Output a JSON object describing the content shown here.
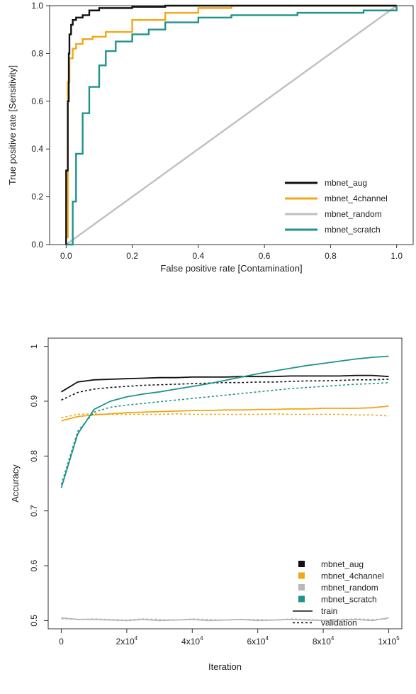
{
  "chart_data": [
    {
      "type": "line",
      "xlabel": "False positive rate [Contamination]",
      "ylabel": "True positive rate [Sensitivity]",
      "xlim": [
        -0.05,
        1.05
      ],
      "ylim": [
        0.0,
        1.0
      ],
      "xticks": [
        0.0,
        0.2,
        0.4,
        0.6,
        0.8,
        1.0
      ],
      "xtick_labels": [
        "0.0",
        "0.2",
        "0.4",
        "0.6",
        "0.8",
        "1.0"
      ],
      "yticks": [
        0.0,
        0.2,
        0.4,
        0.6,
        0.8,
        1.0
      ],
      "ytick_labels": [
        "0.0",
        "0.2",
        "0.4",
        "0.6",
        "0.8",
        "1.0"
      ],
      "legend_position": "bottom-right",
      "series": [
        {
          "name": "mbnet_aug",
          "color": "#111111",
          "x": [
            0.0,
            0.0,
            0.005,
            0.008,
            0.01,
            0.015,
            0.02,
            0.03,
            0.05,
            0.07,
            0.1,
            0.2,
            0.3,
            0.45,
            1.0
          ],
          "y": [
            0.0,
            0.31,
            0.6,
            0.8,
            0.88,
            0.92,
            0.94,
            0.95,
            0.96,
            0.98,
            0.99,
            0.995,
            1.0,
            1.0,
            1.0
          ]
        },
        {
          "name": "mbnet_4channel",
          "color": "#f0a818",
          "x": [
            0.0,
            0.0,
            0.005,
            0.01,
            0.02,
            0.03,
            0.05,
            0.08,
            0.12,
            0.2,
            0.3,
            0.4,
            0.5,
            1.0
          ],
          "y": [
            0.0,
            0.03,
            0.68,
            0.78,
            0.82,
            0.84,
            0.86,
            0.87,
            0.89,
            0.94,
            0.97,
            0.99,
            1.0,
            1.0
          ]
        },
        {
          "name": "mbnet_random",
          "color": "#c0c0c0",
          "x": [
            0.0,
            1.0
          ],
          "y": [
            0.0,
            1.0
          ]
        },
        {
          "name": "mbnet_scratch",
          "color": "#1f938c",
          "x": [
            0.0,
            0.02,
            0.03,
            0.05,
            0.07,
            0.1,
            0.12,
            0.15,
            0.2,
            0.25,
            0.3,
            0.4,
            0.5,
            0.7,
            0.9,
            1.0
          ],
          "y": [
            0.0,
            0.18,
            0.38,
            0.55,
            0.66,
            0.75,
            0.81,
            0.85,
            0.88,
            0.9,
            0.93,
            0.95,
            0.96,
            0.97,
            0.98,
            1.0
          ]
        }
      ]
    },
    {
      "type": "line",
      "xlabel": "Iteration",
      "ylabel": "Accuracy",
      "xlim": [
        -4000,
        104000
      ],
      "ylim": [
        0.485,
        1.015
      ],
      "xticks": [
        0,
        20000,
        40000,
        60000,
        80000,
        100000
      ],
      "xtick_labels": [
        "0",
        "2x10",
        "4x10",
        "6x10",
        "8x10",
        "1x10"
      ],
      "xtick_exponents": [
        "",
        "4",
        "4",
        "4",
        "4",
        "5"
      ],
      "yticks": [
        0.5,
        0.6,
        0.7,
        0.8,
        0.9,
        1.0
      ],
      "ytick_labels": [
        "0.5",
        "0.6",
        "0.7",
        "0.8",
        "0.9",
        "1"
      ],
      "legend_position": "bottom-right",
      "legend_styles": [
        {
          "name": "train",
          "dash": "solid"
        },
        {
          "name": "validation",
          "dash": "dotted"
        }
      ],
      "x": [
        0,
        5000,
        10000,
        15000,
        20000,
        25000,
        30000,
        35000,
        40000,
        45000,
        50000,
        55000,
        60000,
        65000,
        70000,
        75000,
        80000,
        85000,
        90000,
        95000,
        100000
      ],
      "series": [
        {
          "name": "mbnet_aug",
          "color": "#111111",
          "train": [
            0.917,
            0.935,
            0.939,
            0.94,
            0.941,
            0.942,
            0.943,
            0.943,
            0.944,
            0.944,
            0.944,
            0.945,
            0.945,
            0.945,
            0.946,
            0.946,
            0.946,
            0.946,
            0.947,
            0.947,
            0.945
          ],
          "validation": [
            0.902,
            0.916,
            0.922,
            0.925,
            0.927,
            0.929,
            0.93,
            0.931,
            0.932,
            0.933,
            0.934,
            0.934,
            0.935,
            0.935,
            0.936,
            0.937,
            0.937,
            0.938,
            0.939,
            0.939,
            0.94
          ]
        },
        {
          "name": "mbnet_4channel",
          "color": "#f0a818",
          "train": [
            0.864,
            0.872,
            0.875,
            0.877,
            0.879,
            0.88,
            0.881,
            0.882,
            0.883,
            0.883,
            0.884,
            0.884,
            0.885,
            0.885,
            0.886,
            0.886,
            0.887,
            0.887,
            0.887,
            0.888,
            0.891
          ],
          "validation": [
            0.87,
            0.876,
            0.877,
            0.876,
            0.876,
            0.876,
            0.876,
            0.877,
            0.876,
            0.876,
            0.876,
            0.876,
            0.876,
            0.877,
            0.876,
            0.876,
            0.876,
            0.876,
            0.875,
            0.875,
            0.873
          ]
        },
        {
          "name": "mbnet_random",
          "color": "#b8b8b8",
          "train": [
            0.505,
            0.502,
            0.502,
            0.501,
            0.5,
            0.502,
            0.5,
            0.501,
            0.502,
            0.5,
            0.501,
            0.502,
            0.5,
            0.501,
            0.502,
            0.501,
            0.5,
            0.501,
            0.502,
            0.5,
            0.505
          ],
          "validation": [
            0.503,
            0.502,
            0.503,
            0.502,
            0.501,
            0.503,
            0.502,
            0.501,
            0.503,
            0.502,
            0.501,
            0.502,
            0.502,
            0.501,
            0.503,
            0.502,
            0.501,
            0.502,
            0.503,
            0.502,
            0.503
          ]
        },
        {
          "name": "mbnet_scratch",
          "color": "#1f938c",
          "train": [
            0.742,
            0.84,
            0.885,
            0.9,
            0.908,
            0.913,
            0.917,
            0.922,
            0.927,
            0.932,
            0.938,
            0.944,
            0.95,
            0.955,
            0.96,
            0.965,
            0.969,
            0.973,
            0.977,
            0.98,
            0.982
          ],
          "validation": [
            0.748,
            0.845,
            0.88,
            0.889,
            0.893,
            0.896,
            0.899,
            0.902,
            0.905,
            0.908,
            0.911,
            0.914,
            0.917,
            0.92,
            0.923,
            0.925,
            0.927,
            0.929,
            0.931,
            0.932,
            0.934
          ]
        }
      ]
    }
  ]
}
